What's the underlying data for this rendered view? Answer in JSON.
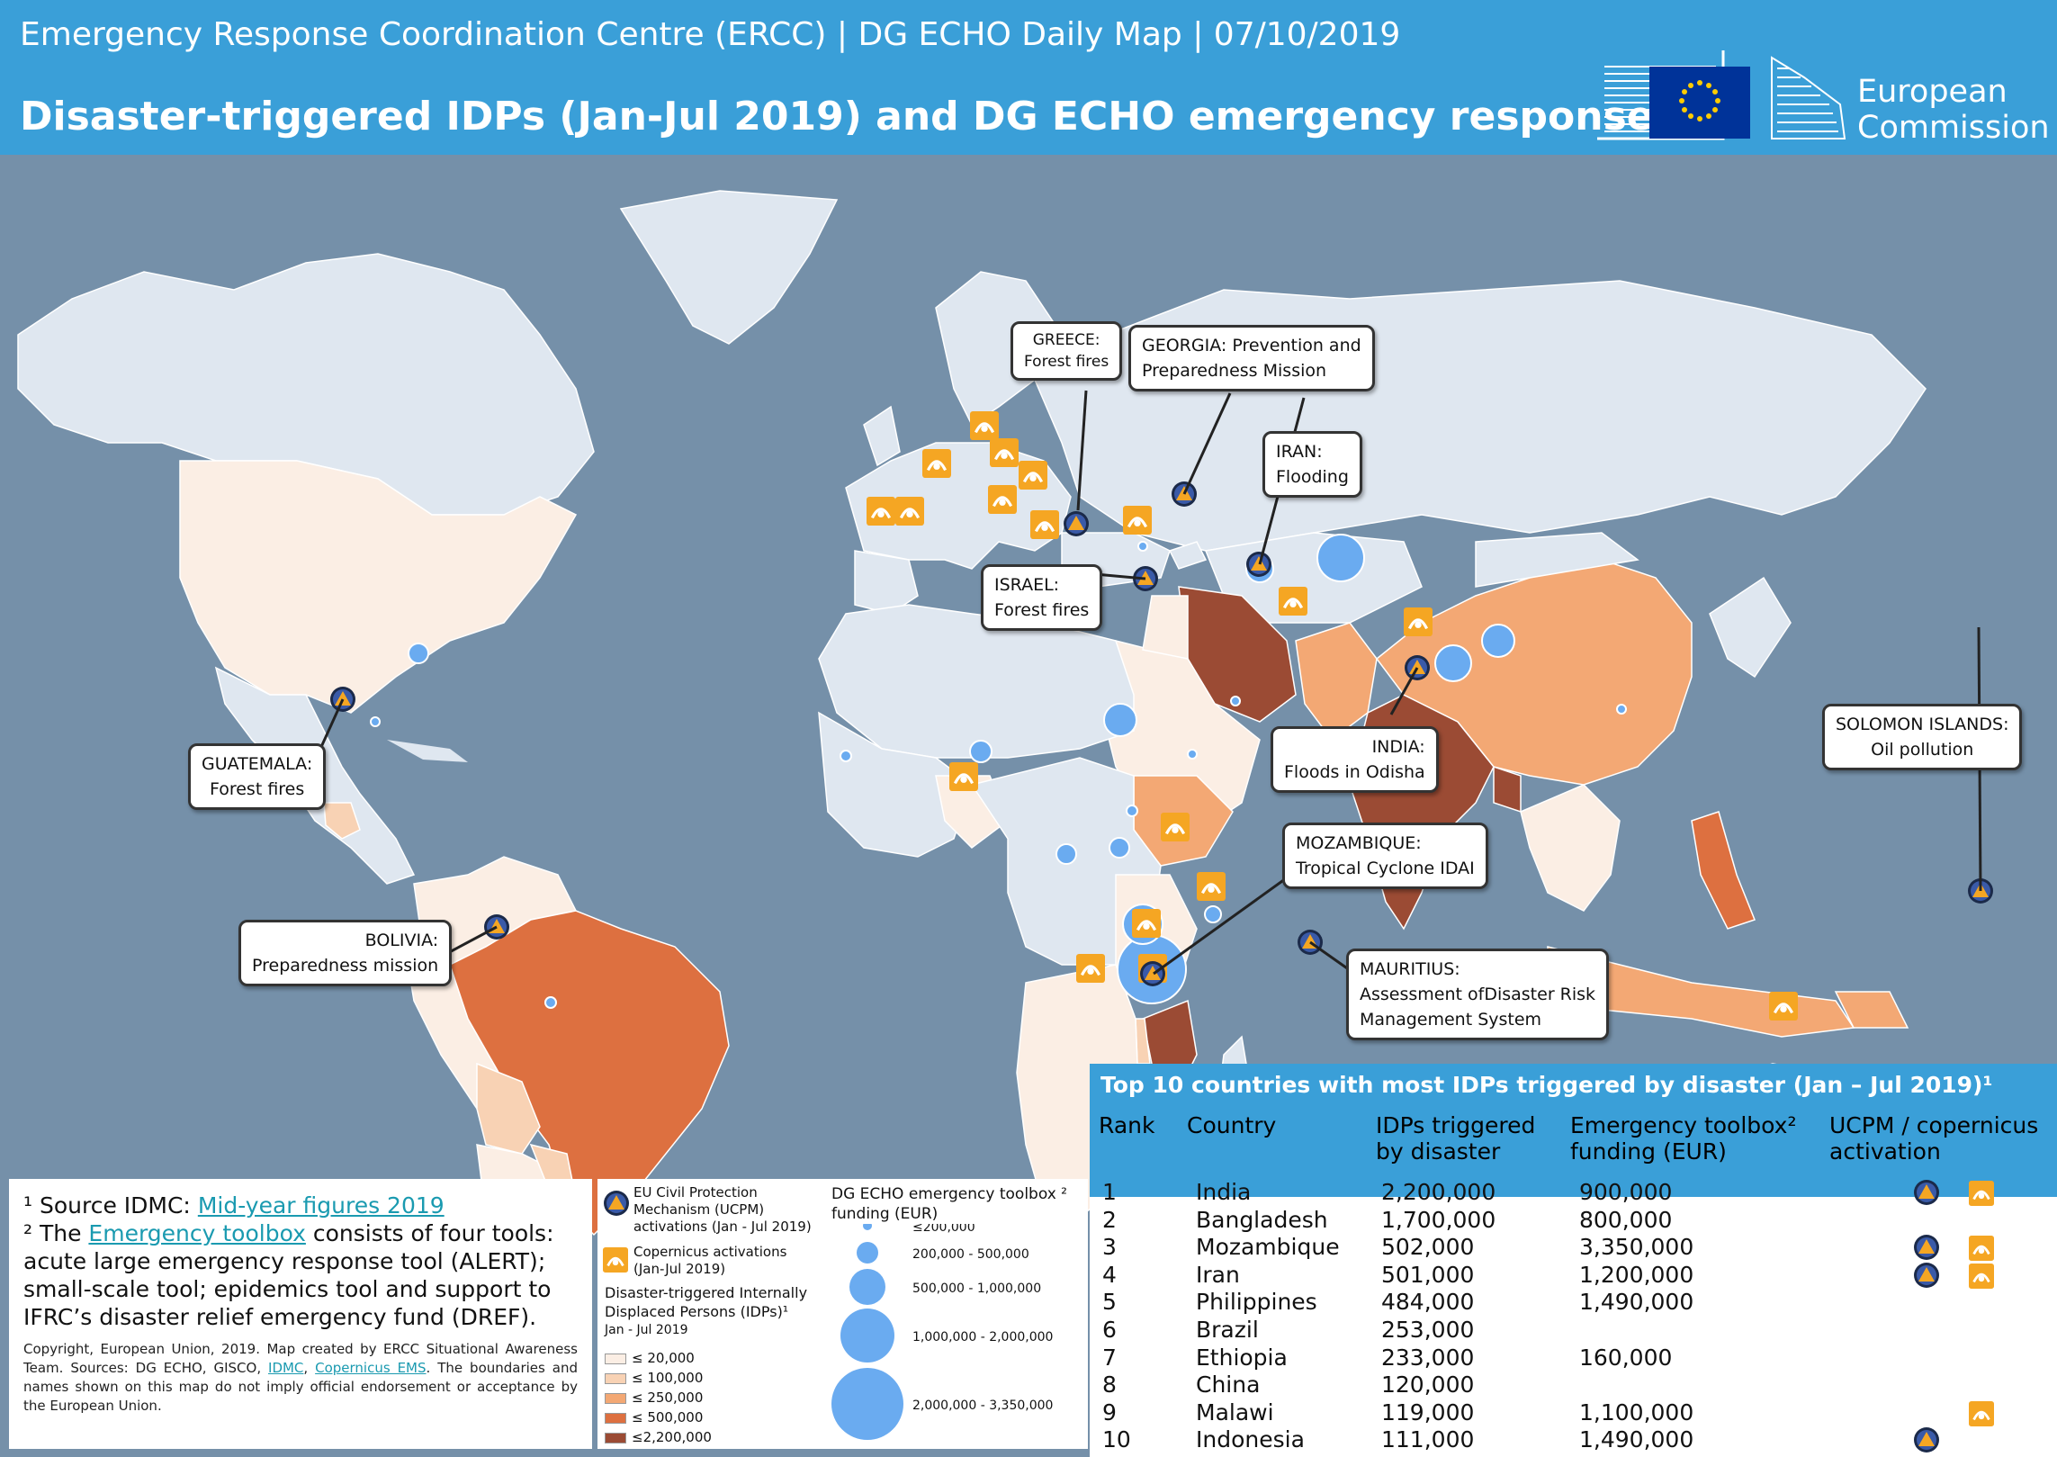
{
  "header": {
    "subtitle": "Emergency Response Coordination Centre (ERCC) | DG ECHO Daily Map | 07/10/2019",
    "title": "Disaster-triggered IDPs (Jan-Jul 2019) and DG ECHO emergency response",
    "logo_line1": "European",
    "logo_line2": "Commission"
  },
  "colors": {
    "header_bg": "#3a9fd8",
    "ocean": "#7590a9",
    "land": "#dfe7f0",
    "idp_20k": "#fbeee4",
    "idp_100k": "#f8d2b4",
    "idp_250k": "#f3a874",
    "idp_500k": "#dd7040",
    "idp_2200k": "#9b4b34",
    "funding_bubble": "#6aabf0",
    "copernicus": "#f5a623",
    "ucpm": "#f5a623"
  },
  "callouts": [
    {
      "id": "greece",
      "line1": "GREECE:",
      "line2": "Forest fires"
    },
    {
      "id": "georgia",
      "line1": "GEORGIA: Prevention and",
      "line2": "Preparedness Mission"
    },
    {
      "id": "iran",
      "line1": "IRAN:",
      "line2": "Flooding"
    },
    {
      "id": "israel",
      "line1": "ISRAEL:",
      "line2": "Forest fires"
    },
    {
      "id": "india",
      "line1": "INDIA:",
      "line2": "Floods in Odisha"
    },
    {
      "id": "solomon",
      "line1": "SOLOMON ISLANDS:",
      "line2": "Oil pollution"
    },
    {
      "id": "guatemala",
      "line1": "GUATEMALA:",
      "line2": "Forest fires"
    },
    {
      "id": "bolivia",
      "line1": "BOLIVIA:",
      "line2": "Preparedness mission"
    },
    {
      "id": "mozambique",
      "line1": "MOZAMBIQUE:",
      "line2": "Tropical Cyclone IDAI"
    },
    {
      "id": "mauritius",
      "line1": "MAURITIUS:",
      "line2": "Assessment ofDisaster Risk",
      "line3": "Management System"
    }
  ],
  "notes": {
    "n1_prefix": "¹ Source IDMC: ",
    "n1_link": "Mid-year figures 2019",
    "n2_prefix": "² The ",
    "n2_link": "Emergency toolbox",
    "n2_rest": " consists of four tools: acute large emergency response tool (ALERT); small-scale tool; epidemics tool and support to IFRC’s disaster relief emergency fund (DREF).",
    "copyright_a": "Copyright, European Union, 2019. Map created by ERCC Situational Awareness Team. Sources: DG ECHO, GISCO, ",
    "copyright_idmc": "IDMC",
    "copyright_sep": ", ",
    "copyright_ems": "Copernicus EMS",
    "copyright_b": ". The boundaries and names shown on this map do not imply official endorsement or acceptance by the European Union."
  },
  "legend": {
    "ucpm_label": "EU Civil Protection Mechanism (UCPM) activations (Jan - Jul 2019)",
    "ucpm_l1": "EU Civil Protection",
    "ucpm_l2": "Mechanism (UCPM)",
    "ucpm_l3": "activations (Jan - Jul 2019)",
    "cop_l1": "Copernicus activations",
    "cop_l2": "(Jan-Jul 2019)",
    "idp_title_l1": "Disaster-triggered Internally",
    "idp_title_l2": "Displaced Persons (IDPs)¹",
    "idp_title_l3": "Jan - Jul 2019",
    "idp_classes": [
      "≤ 20,000",
      "≤ 100,000",
      "≤ 250,000",
      "≤ 500,000",
      "≤2,200,000"
    ],
    "funding_title_l1": "DG ECHO emergency toolbox ²",
    "funding_title_l2": "funding (EUR)",
    "funding_classes": [
      "≤200,000",
      "200,000 - 500,000",
      "500,000 - 1,000,000",
      "1,000,000 - 2,000,000",
      "2,000,000 - 3,350,000"
    ]
  },
  "table": {
    "title": "Top 10 countries with most IDPs triggered by disaster (Jan – Jul 2019)¹",
    "headers": {
      "rank": "Rank",
      "country": "Country",
      "idps_l1": "IDPs triggered",
      "idps_l2": "by disaster",
      "funding_l1": "Emergency toolbox²",
      "funding_l2": "funding (EUR)",
      "act_l1": "UCPM / copernicus",
      "act_l2": "activation"
    },
    "rows": [
      {
        "rank": "1",
        "country": "India",
        "idps": "2,200,000",
        "funding": "900,000",
        "ucpm": true,
        "copernicus": true
      },
      {
        "rank": "2",
        "country": "Bangladesh",
        "idps": "1,700,000",
        "funding": "800,000",
        "ucpm": false,
        "copernicus": false
      },
      {
        "rank": "3",
        "country": "Mozambique",
        "idps": "502,000",
        "funding": "3,350,000",
        "ucpm": true,
        "copernicus": true
      },
      {
        "rank": "4",
        "country": "Iran",
        "idps": "501,000",
        "funding": "1,200,000",
        "ucpm": true,
        "copernicus": true
      },
      {
        "rank": "5",
        "country": "Philippines",
        "idps": "484,000",
        "funding": "1,490,000",
        "ucpm": false,
        "copernicus": false
      },
      {
        "rank": "6",
        "country": "Brazil",
        "idps": "253,000",
        "funding": "",
        "ucpm": false,
        "copernicus": false
      },
      {
        "rank": "7",
        "country": "Ethiopia",
        "idps": "233,000",
        "funding": "160,000",
        "ucpm": false,
        "copernicus": false
      },
      {
        "rank": "8",
        "country": "China",
        "idps": "120,000",
        "funding": "",
        "ucpm": false,
        "copernicus": false
      },
      {
        "rank": "9",
        "country": "Malawi",
        "idps": "119,000",
        "funding": "1,100,000",
        "ucpm": false,
        "copernicus": true
      },
      {
        "rank": "10",
        "country": "Indonesia",
        "idps": "111,000",
        "funding": "1,490,000",
        "ucpm": true,
        "copernicus": false
      }
    ]
  }
}
